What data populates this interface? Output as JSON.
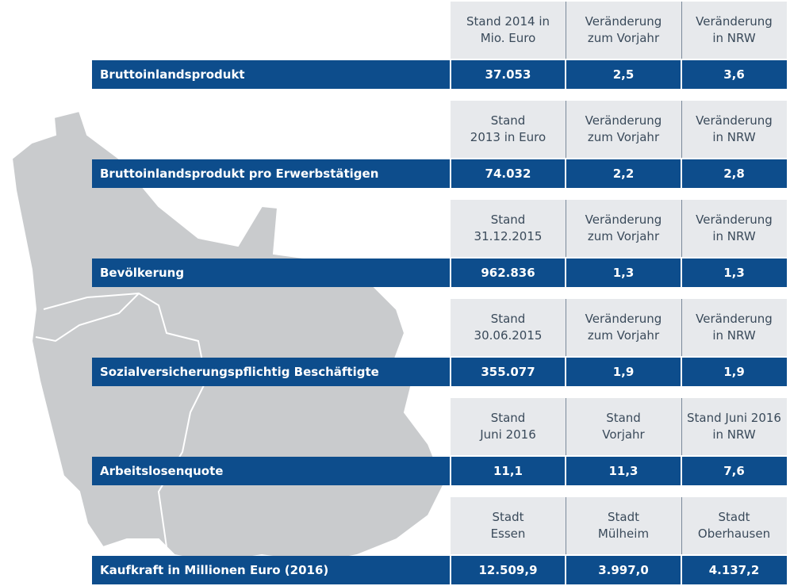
{
  "sections": [
    {
      "label": "Bruttoinlandsprodukt",
      "headers": [
        [
          "Stand 2014 in",
          "Mio. Euro"
        ],
        [
          "Veränderung",
          "zum Vorjahr"
        ],
        [
          "Veränderung",
          "in NRW"
        ]
      ],
      "values": [
        "37.053",
        "2,5",
        "3,6"
      ]
    },
    {
      "label": "Bruttoinlandsprodukt pro Erwerbstätigen",
      "headers": [
        [
          "Stand",
          "2013 in Euro"
        ],
        [
          "Veränderung",
          "zum Vorjahr"
        ],
        [
          "Veränderung",
          "in NRW"
        ]
      ],
      "values": [
        "74.032",
        "2,2",
        "2,8"
      ]
    },
    {
      "label": "Bevölkerung",
      "headers": [
        [
          "Stand",
          "31.12.2015"
        ],
        [
          "Veränderung",
          "zum Vorjahr"
        ],
        [
          "Veränderung",
          "in NRW"
        ]
      ],
      "values": [
        "962.836",
        "1,3",
        "1,3"
      ]
    },
    {
      "label": "Sozialversicherungspflichtig Beschäftigte",
      "headers": [
        [
          "Stand",
          "30.06.2015"
        ],
        [
          "Veränderung",
          "zum Vorjahr"
        ],
        [
          "Veränderung",
          "in NRW"
        ]
      ],
      "values": [
        "355.077",
        "1,9",
        "1,9"
      ]
    },
    {
      "label": "Arbeitslosenquote",
      "headers": [
        [
          "Stand",
          "Juni 2016"
        ],
        [
          "Stand",
          "Vorjahr"
        ],
        [
          "Stand Juni 2016",
          "in NRW"
        ]
      ],
      "values": [
        "11,1",
        "11,3",
        "7,6"
      ]
    },
    {
      "label": "Kaufkraft in Millionen Euro (2016)",
      "headers": [
        [
          "Stadt",
          "Essen"
        ],
        [
          "Stadt",
          "Mülheim"
        ],
        [
          "Stadt",
          "Oberhausen"
        ]
      ],
      "values": [
        "12.509,9",
        "3.997,0",
        "4.137,2"
      ]
    }
  ]
}
